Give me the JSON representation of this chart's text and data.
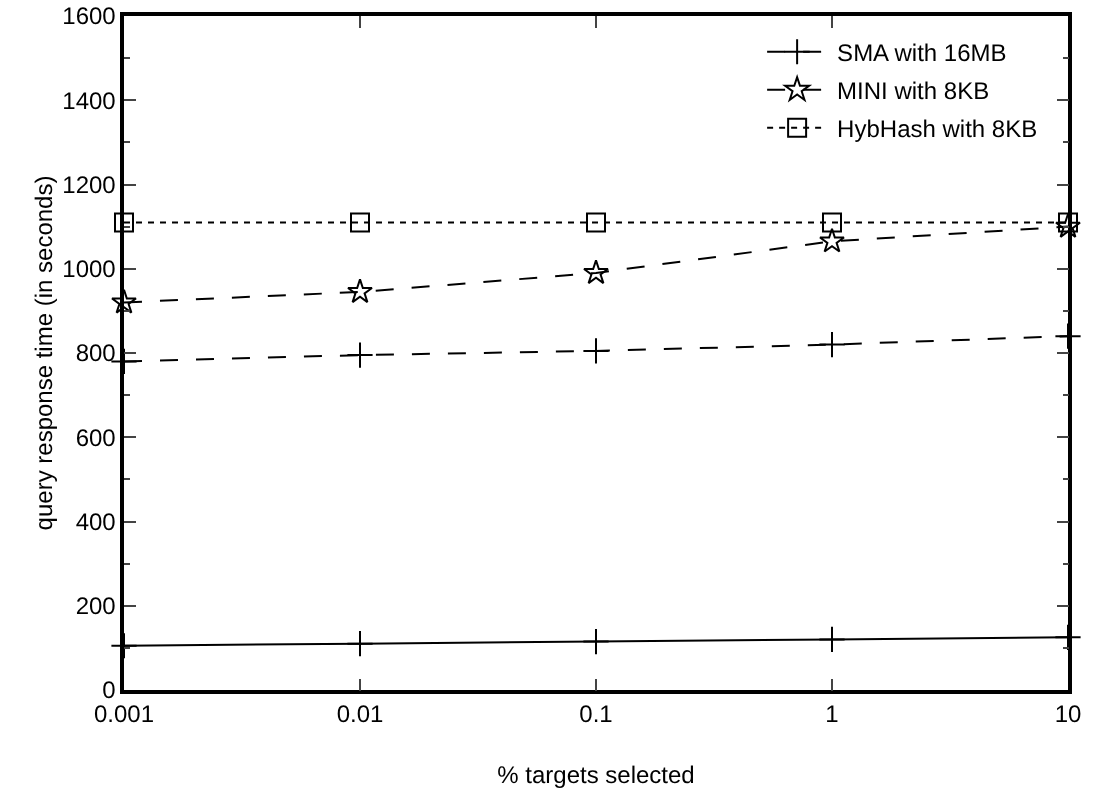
{
  "chart_data": {
    "type": "line",
    "xlabel": "% targets selected",
    "ylabel": "query response time (in seconds)",
    "x": [
      0.001,
      0.01,
      0.1,
      1,
      10
    ],
    "log": "x",
    "xlim": [
      0.001,
      10
    ],
    "xticks": [
      0.001,
      0.01,
      0.1,
      1,
      10
    ],
    "ylim": [
      0,
      1600
    ],
    "yticks": [
      0,
      200,
      400,
      600,
      800,
      1000,
      1200,
      1400,
      1600
    ],
    "grid": false,
    "legend": "top right",
    "series": [
      {
        "color": "#000000",
        "marker": "cross",
        "line_style": "solid",
        "values": [
          105,
          110,
          115,
          120,
          125
        ]
      },
      {
        "name": "SMA with 16MB",
        "color": "#000000",
        "marker": "cross",
        "line_style": "dashed",
        "values": [
          780,
          795,
          805,
          820,
          840
        ]
      },
      {
        "name": "MINI with 8KB",
        "color": "#000000",
        "marker": "star",
        "line_style": "dashed",
        "values": [
          920,
          945,
          990,
          1065,
          1100
        ]
      },
      {
        "name": "HybHash with 8KB",
        "color": "#000000",
        "marker": "square",
        "line_style": "dotted",
        "values": [
          1110,
          1110,
          1110,
          1110,
          1110
        ]
      }
    ]
  }
}
